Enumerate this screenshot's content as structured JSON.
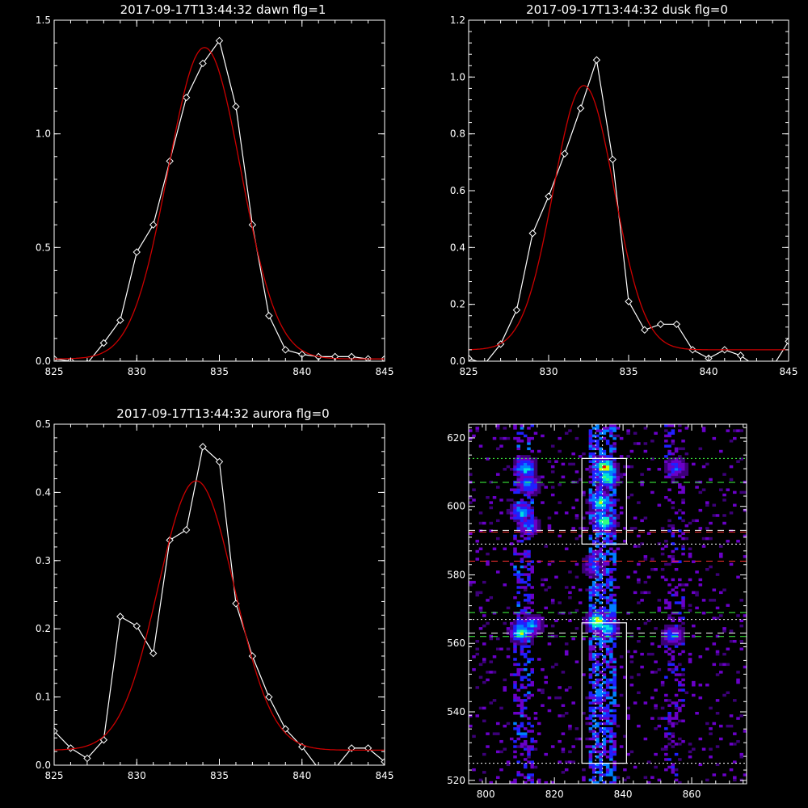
{
  "chart_data": [
    {
      "type": "line",
      "title": "2017-09-17T13:44:32 dawn flg=1",
      "xlim": [
        825,
        845
      ],
      "ylim": [
        0,
        1.5
      ],
      "xticks": [
        "825",
        "830",
        "835",
        "840",
        "845"
      ],
      "yticks": [
        "0.0",
        "0.5",
        "1.0",
        "1.5"
      ],
      "xtick_values": [
        825,
        830,
        835,
        840,
        845
      ],
      "ytick_values": [
        0,
        0.5,
        1.0,
        1.5
      ],
      "series": [
        {
          "style": "white-diamonds",
          "color": "#ffffff",
          "x": [
            825,
            826,
            827,
            828,
            829,
            830,
            831,
            832,
            833,
            834,
            835,
            836,
            837,
            838,
            839,
            840,
            841,
            842,
            843,
            844,
            845
          ],
          "y": [
            0.01,
            0.0,
            -0.01,
            0.08,
            0.18,
            0.48,
            0.6,
            0.88,
            1.16,
            1.31,
            1.41,
            1.12,
            0.6,
            0.2,
            0.05,
            0.03,
            0.02,
            0.02,
            0.02,
            0.01,
            0.01
          ]
        },
        {
          "style": "red-fit",
          "color": "#cc0000",
          "fit": {
            "amp": 1.37,
            "center": 834.1,
            "sigma": 2.2,
            "base": 0.01
          }
        }
      ]
    },
    {
      "type": "line",
      "title": "2017-09-17T13:44:32 dusk flg=0",
      "xlim": [
        825,
        845
      ],
      "ylim": [
        0,
        1.2
      ],
      "xticks": [
        "825",
        "830",
        "835",
        "840",
        "845"
      ],
      "yticks": [
        "0.0",
        "0.2",
        "0.4",
        "0.6",
        "0.8",
        "1.0",
        "1.2"
      ],
      "xtick_values": [
        825,
        830,
        835,
        840,
        845
      ],
      "ytick_values": [
        0,
        0.2,
        0.4,
        0.6,
        0.8,
        1.0,
        1.2
      ],
      "series": [
        {
          "style": "white-diamonds",
          "color": "#ffffff",
          "x": [
            825,
            826,
            827,
            828,
            829,
            830,
            831,
            832,
            833,
            834,
            835,
            836,
            837,
            838,
            839,
            840,
            841,
            842,
            843,
            844,
            845
          ],
          "y": [
            0.01,
            -0.01,
            0.06,
            0.18,
            0.45,
            0.58,
            0.73,
            0.89,
            1.06,
            0.71,
            0.21,
            0.11,
            0.13,
            0.13,
            0.04,
            0.01,
            0.04,
            0.02,
            -0.02,
            -0.02,
            0.07
          ]
        },
        {
          "style": "red-fit",
          "color": "#cc0000",
          "fit": {
            "amp": 0.93,
            "center": 832.2,
            "sigma": 1.9,
            "base": 0.04
          }
        }
      ]
    },
    {
      "type": "line",
      "title": "2017-09-17T13:44:32 aurora flg=0",
      "xlim": [
        825,
        845
      ],
      "ylim": [
        0,
        0.5
      ],
      "xticks": [
        "825",
        "830",
        "835",
        "840",
        "845"
      ],
      "yticks": [
        "0.0",
        "0.1",
        "0.2",
        "0.3",
        "0.4",
        "0.5"
      ],
      "xtick_values": [
        825,
        830,
        835,
        840,
        845
      ],
      "ytick_values": [
        0,
        0.1,
        0.2,
        0.3,
        0.4,
        0.5
      ],
      "series": [
        {
          "style": "white-diamonds",
          "color": "#ffffff",
          "x": [
            825,
            826,
            827,
            828,
            829,
            830,
            831,
            832,
            833,
            834,
            835,
            836,
            837,
            838,
            839,
            840,
            841,
            842,
            843,
            844,
            845
          ],
          "y": [
            0.05,
            0.025,
            0.01,
            0.037,
            0.218,
            0.204,
            0.164,
            0.33,
            0.345,
            0.467,
            0.445,
            0.237,
            0.16,
            0.1,
            0.053,
            0.027,
            -0.005,
            -0.005,
            0.025,
            0.025,
            0.005
          ]
        },
        {
          "style": "red-fit",
          "color": "#cc0000",
          "fit": {
            "amp": 0.395,
            "center": 833.6,
            "sigma": 2.3,
            "base": 0.022
          }
        }
      ]
    },
    {
      "type": "heatmap",
      "title": "",
      "xlim": [
        795,
        876
      ],
      "ylim": [
        519,
        624
      ],
      "xticks": [
        "800",
        "820",
        "840",
        "860"
      ],
      "yticks": [
        "520",
        "540",
        "560",
        "580",
        "600",
        "620"
      ],
      "xtick_values": [
        800,
        820,
        840,
        860
      ],
      "ytick_values": [
        520,
        540,
        560,
        580,
        600,
        620
      ],
      "colormap": [
        "#3c0078",
        "#6a00c8",
        "#2020ff",
        "#0080ff",
        "#00e0e0",
        "#30ff80",
        "#d0ff00",
        "#ff0000"
      ],
      "bright_spots": [
        {
          "x": 811,
          "y": 611,
          "v": 0.6
        },
        {
          "x": 812,
          "y": 606,
          "v": 0.5
        },
        {
          "x": 810,
          "y": 598,
          "v": 0.55
        },
        {
          "x": 812,
          "y": 594,
          "v": 0.4
        },
        {
          "x": 810,
          "y": 563,
          "v": 0.75
        },
        {
          "x": 813,
          "y": 565,
          "v": 0.5
        },
        {
          "x": 834,
          "y": 611,
          "v": 0.95
        },
        {
          "x": 835,
          "y": 608,
          "v": 0.8
        },
        {
          "x": 833,
          "y": 601,
          "v": 0.7
        },
        {
          "x": 834,
          "y": 595,
          "v": 0.75
        },
        {
          "x": 832,
          "y": 566,
          "v": 0.8
        },
        {
          "x": 835,
          "y": 564,
          "v": 0.6
        },
        {
          "x": 855,
          "y": 611,
          "v": 0.4
        },
        {
          "x": 854,
          "y": 562,
          "v": 0.4
        },
        {
          "x": 831,
          "y": 582,
          "v": 0.3
        }
      ],
      "boxes": [
        {
          "x0": 828,
          "x1": 841,
          "y0": 589,
          "y1": 614
        },
        {
          "x0": 828,
          "x1": 841,
          "y0": 525,
          "y1": 566
        }
      ],
      "hlines": [
        {
          "y": 614,
          "color": "#40ff40",
          "dash": "2,3"
        },
        {
          "y": 607,
          "color": "#40ff40",
          "dash": "8,6"
        },
        {
          "y": 593,
          "color": "#ffffff",
          "dash": "8,6"
        },
        {
          "y": 592.5,
          "color": "#ff3030",
          "dash": "8,6"
        },
        {
          "y": 589,
          "color": "#ffffff",
          "dash": "2,3"
        },
        {
          "y": 584,
          "color": "#ff3030",
          "dash": "8,6"
        },
        {
          "y": 569,
          "color": "#40ff40",
          "dash": "8,6"
        },
        {
          "y": 567,
          "color": "#ffffff",
          "dash": "2,3"
        },
        {
          "y": 562,
          "color": "#40ff40",
          "dash": "8,6"
        },
        {
          "y": 563,
          "color": "#ffffff",
          "dash": "8,6"
        },
        {
          "y": 525,
          "color": "#ffffff",
          "dash": "2,3"
        }
      ],
      "vlines": [
        {
          "x": 832,
          "color": "#ffffff",
          "dash": "2,3"
        },
        {
          "x": 834,
          "color": "#ffffff",
          "dash": "2,3"
        }
      ]
    }
  ]
}
